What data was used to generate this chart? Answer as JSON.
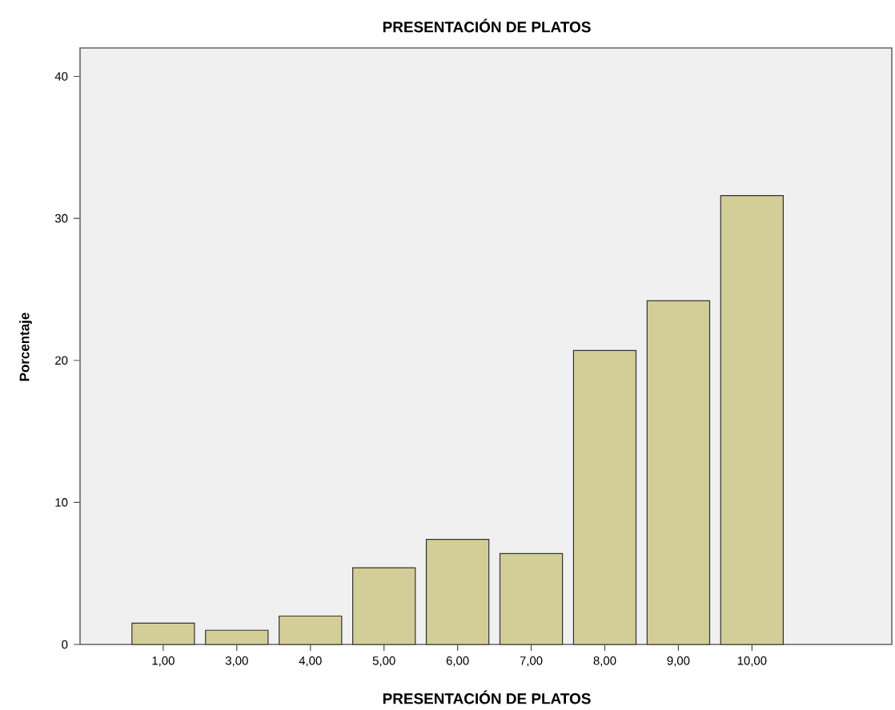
{
  "chart_data": {
    "type": "bar",
    "title": "PRESENTACIÓN DE PLATOS",
    "xlabel": "PRESENTACIÓN DE PLATOS",
    "ylabel": "Porcentaje",
    "categories": [
      "1,00",
      "3,00",
      "4,00",
      "5,00",
      "6,00",
      "7,00",
      "8,00",
      "9,00",
      "10,00"
    ],
    "values": [
      1.5,
      1.0,
      2.0,
      5.4,
      7.4,
      6.4,
      20.7,
      24.2,
      31.6
    ],
    "color": "#d3ce97",
    "ylim": [
      0,
      42
    ],
    "yticks": [
      0,
      10,
      20,
      30,
      40
    ]
  }
}
